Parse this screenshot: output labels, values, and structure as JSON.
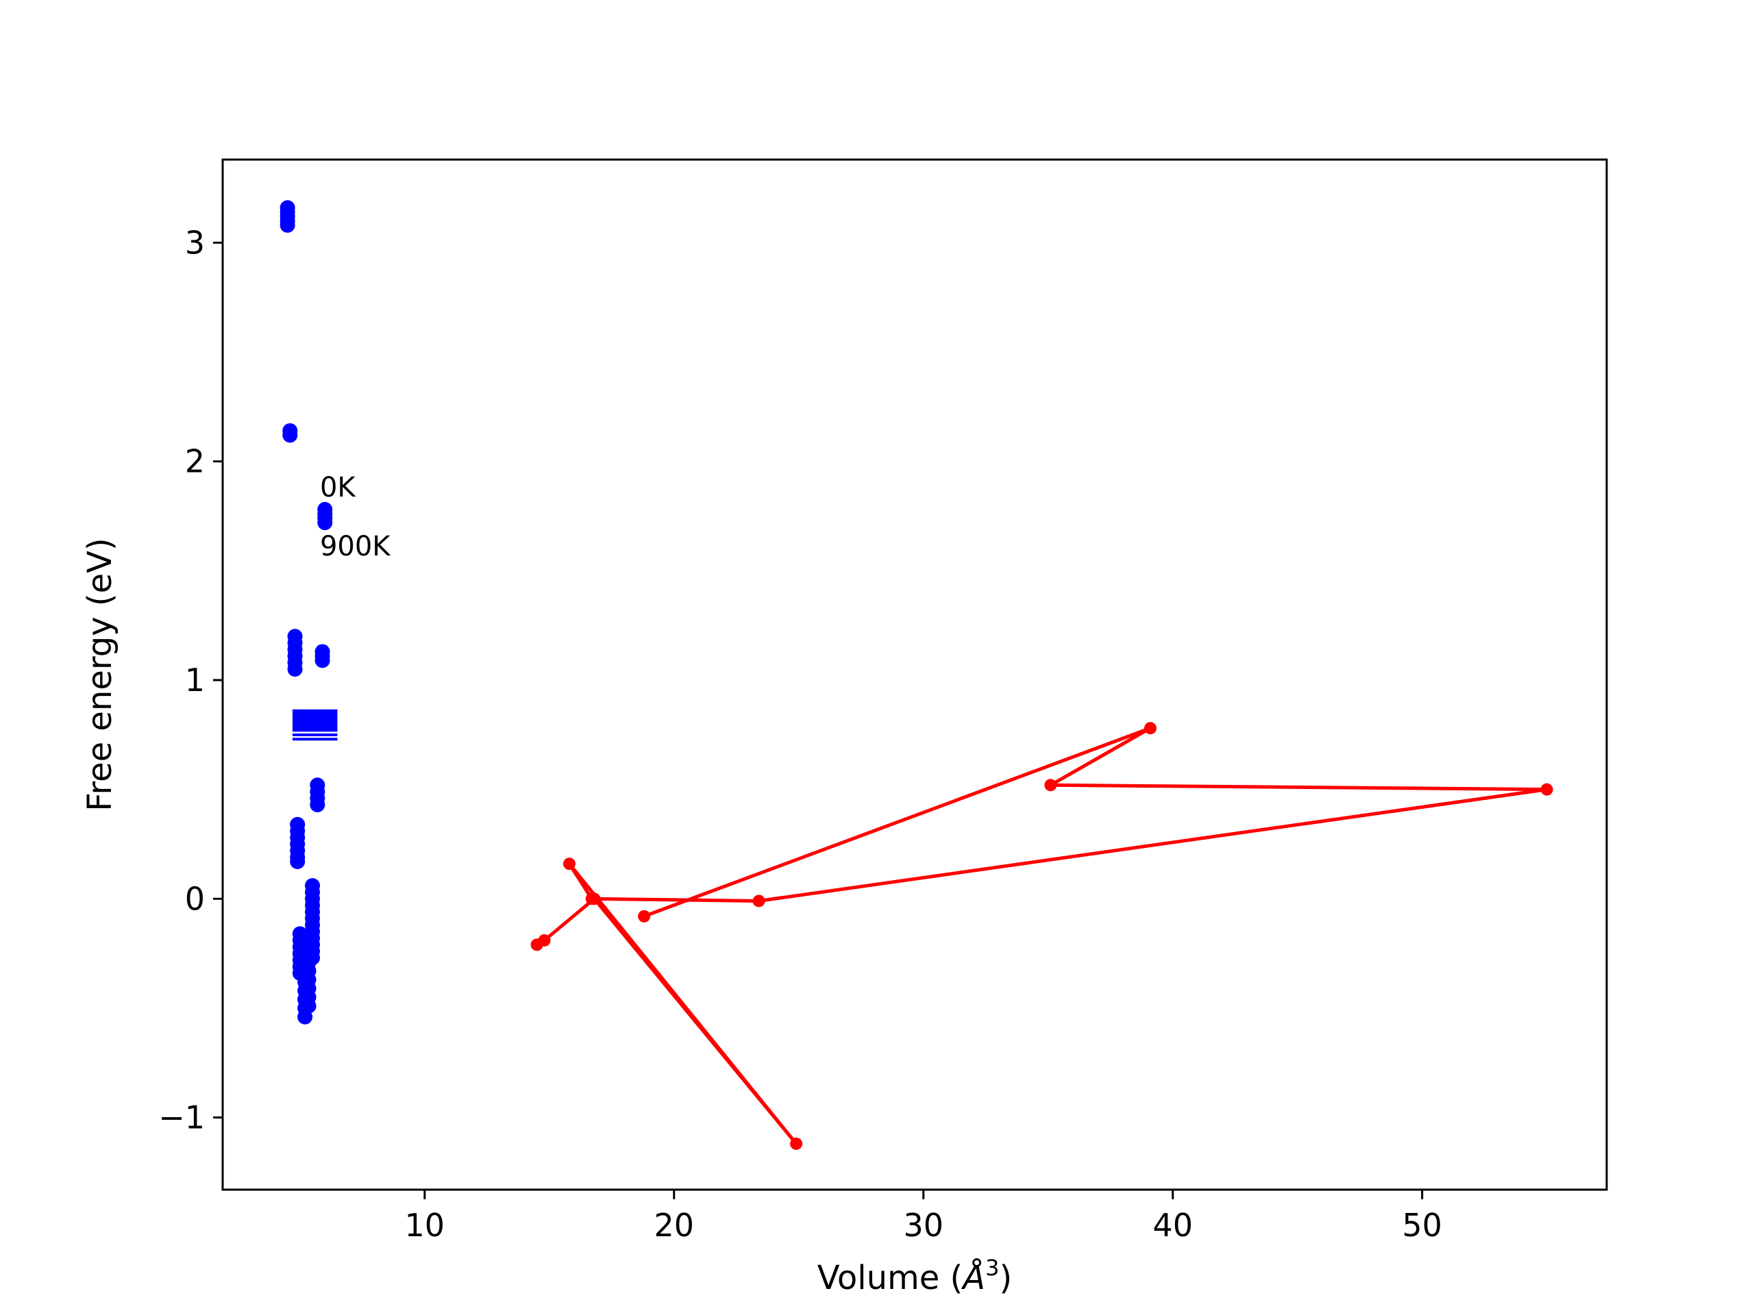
{
  "chart_data": {
    "type": "scatter",
    "xlabel_prefix": "Volume (",
    "xlabel_unit_base": "Å",
    "xlabel_unit_exp": "3",
    "xlabel_suffix": ")",
    "ylabel": "Free energy (eV)",
    "xlim": [
      1.9,
      57.4
    ],
    "ylim": [
      -1.33,
      3.38
    ],
    "xticks": [
      {
        "value": 10,
        "label": "10"
      },
      {
        "value": 20,
        "label": "20"
      },
      {
        "value": 30,
        "label": "30"
      },
      {
        "value": 40,
        "label": "40"
      },
      {
        "value": 50,
        "label": "50"
      }
    ],
    "yticks": [
      {
        "value": -1,
        "label": "−1"
      },
      {
        "value": 0,
        "label": "0"
      },
      {
        "value": 1,
        "label": "1"
      },
      {
        "value": 2,
        "label": "2"
      },
      {
        "value": 3,
        "label": "3"
      }
    ],
    "annotations": [
      {
        "text": "0K",
        "x": 5.8,
        "y": 1.84
      },
      {
        "text": "900K",
        "x": 5.8,
        "y": 1.57
      }
    ],
    "series": [
      {
        "style": "markers",
        "color": "#0000ff",
        "points": [
          [
            4.5,
            3.16
          ],
          [
            4.5,
            3.14
          ],
          [
            4.5,
            3.12
          ],
          [
            4.5,
            3.1
          ],
          [
            4.5,
            3.08
          ],
          [
            4.6,
            2.14
          ],
          [
            4.6,
            2.12
          ],
          [
            6.0,
            1.78
          ],
          [
            6.0,
            1.76
          ],
          [
            6.0,
            1.74
          ],
          [
            6.0,
            1.72
          ],
          [
            4.8,
            1.2
          ],
          [
            4.8,
            1.17
          ],
          [
            4.8,
            1.14
          ],
          [
            4.8,
            1.11
          ],
          [
            4.8,
            1.08
          ],
          [
            4.8,
            1.05
          ],
          [
            5.9,
            1.13
          ],
          [
            5.9,
            1.11
          ],
          [
            5.9,
            1.09
          ],
          [
            5.7,
            0.52
          ],
          [
            5.7,
            0.49
          ],
          [
            5.7,
            0.46
          ],
          [
            5.7,
            0.43
          ],
          [
            4.9,
            0.34
          ],
          [
            4.9,
            0.31
          ],
          [
            4.9,
            0.28
          ],
          [
            4.9,
            0.25
          ],
          [
            4.9,
            0.22
          ],
          [
            4.9,
            0.19
          ],
          [
            4.9,
            0.17
          ],
          [
            5.5,
            0.06
          ],
          [
            5.5,
            0.03
          ],
          [
            5.5,
            0.0
          ],
          [
            5.5,
            -0.03
          ],
          [
            5.5,
            -0.06
          ],
          [
            5.5,
            -0.09
          ],
          [
            5.5,
            -0.12
          ],
          [
            5.5,
            -0.15
          ],
          [
            5.5,
            -0.18
          ],
          [
            5.5,
            -0.21
          ],
          [
            5.5,
            -0.24
          ],
          [
            5.5,
            -0.27
          ],
          [
            5.0,
            -0.16
          ],
          [
            5.0,
            -0.19
          ],
          [
            5.0,
            -0.22
          ],
          [
            5.0,
            -0.25
          ],
          [
            5.0,
            -0.28
          ],
          [
            5.0,
            -0.31
          ],
          [
            5.0,
            -0.34
          ],
          [
            5.2,
            -0.18
          ],
          [
            5.2,
            -0.22
          ],
          [
            5.2,
            -0.26
          ],
          [
            5.2,
            -0.3
          ],
          [
            5.2,
            -0.34
          ],
          [
            5.2,
            -0.38
          ],
          [
            5.2,
            -0.42
          ],
          [
            5.2,
            -0.46
          ],
          [
            5.2,
            -0.5
          ],
          [
            5.2,
            -0.54
          ],
          [
            5.35,
            -0.17
          ],
          [
            5.35,
            -0.21
          ],
          [
            5.35,
            -0.25
          ],
          [
            5.35,
            -0.29
          ],
          [
            5.35,
            -0.33
          ],
          [
            5.35,
            -0.37
          ],
          [
            5.35,
            -0.41
          ],
          [
            5.35,
            -0.45
          ],
          [
            5.35,
            -0.49
          ]
        ],
        "hlines": [
          {
            "x0": 4.7,
            "x1": 6.5,
            "y": 0.86
          },
          {
            "x0": 4.7,
            "x1": 6.5,
            "y": 0.85
          },
          {
            "x0": 4.7,
            "x1": 6.5,
            "y": 0.84
          },
          {
            "x0": 4.7,
            "x1": 6.5,
            "y": 0.83
          },
          {
            "x0": 4.7,
            "x1": 6.5,
            "y": 0.82
          },
          {
            "x0": 4.7,
            "x1": 6.5,
            "y": 0.81
          },
          {
            "x0": 4.7,
            "x1": 6.5,
            "y": 0.8
          },
          {
            "x0": 4.7,
            "x1": 6.5,
            "y": 0.79
          },
          {
            "x0": 4.7,
            "x1": 6.5,
            "y": 0.78
          },
          {
            "x0": 4.7,
            "x1": 6.5,
            "y": 0.77
          },
          {
            "x0": 4.7,
            "x1": 6.5,
            "y": 0.75
          },
          {
            "x0": 4.7,
            "x1": 6.5,
            "y": 0.73
          }
        ]
      },
      {
        "style": "line-markers",
        "color": "#ff0000",
        "points": [
          [
            14.5,
            -0.21
          ],
          [
            14.8,
            -0.19
          ],
          [
            16.8,
            0.0
          ],
          [
            24.9,
            -1.12
          ],
          [
            15.8,
            0.16
          ],
          [
            16.7,
            0.0
          ],
          [
            23.4,
            -0.01
          ],
          [
            55.0,
            0.5
          ],
          [
            35.1,
            0.52
          ],
          [
            39.1,
            0.78
          ],
          [
            18.8,
            -0.08
          ]
        ]
      }
    ]
  }
}
